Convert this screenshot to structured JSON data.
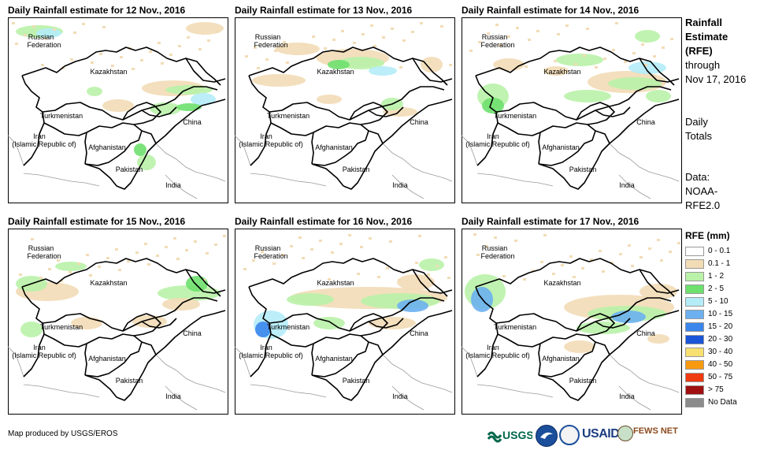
{
  "panels": [
    {
      "title": "Daily Rainfall estimate for 12 Nov., 2016",
      "variant": 0
    },
    {
      "title": "Daily Rainfall estimate for 13 Nov., 2016",
      "variant": 1
    },
    {
      "title": "Daily Rainfall estimate for 14 Nov., 2016",
      "variant": 2
    },
    {
      "title": "Daily Rainfall estimate for 15 Nov., 2016",
      "variant": 3
    },
    {
      "title": "Daily Rainfall estimate for 16 Nov., 2016",
      "variant": 4
    },
    {
      "title": "Daily Rainfall estimate for 17 Nov., 2016",
      "variant": 5
    }
  ],
  "map_labels": {
    "russia_1": "Russian",
    "russia_2": "Federation",
    "kazakhstan": "Kazakhstan",
    "turkmenistan": "Turkmenistan",
    "iran_1": "Iran",
    "iran_2": "(Islamic Republic of)",
    "afghanistan": "Afghanistan",
    "pakistan": "Pakistan",
    "china": "China",
    "india": "India"
  },
  "side": {
    "title_lines": [
      "Rainfall",
      "Estimate",
      "(RFE)"
    ],
    "through_lines": [
      "through",
      "Nov 17, 2016"
    ],
    "daily_lines": [
      "Daily",
      "Totals"
    ],
    "data_lines": [
      "Data:",
      "NOAA-",
      "RFE2.0"
    ]
  },
  "legend": {
    "title": "RFE (mm)",
    "items": [
      {
        "label": "0 - 0.1",
        "color": "#ffffff"
      },
      {
        "label": "0.1 - 1",
        "color": "#f2dcb6"
      },
      {
        "label": "1 - 2",
        "color": "#b9f2a8"
      },
      {
        "label": "2 - 5",
        "color": "#6ee06e"
      },
      {
        "label": "5 - 10",
        "color": "#b4ecf8"
      },
      {
        "label": "10 - 15",
        "color": "#6cb0f0"
      },
      {
        "label": "15 - 20",
        "color": "#3a86ec"
      },
      {
        "label": "20 - 30",
        "color": "#1a55d8"
      },
      {
        "label": "30 - 40",
        "color": "#f8e070"
      },
      {
        "label": "40 - 50",
        "color": "#f89a10"
      },
      {
        "label": "50 - 75",
        "color": "#f03a10"
      },
      {
        "label": "> 75",
        "color": "#a01010"
      },
      {
        "label": "No Data",
        "color": "#8c8c8c"
      }
    ]
  },
  "credit": "Map produced by USGS/EROS",
  "logos": {
    "usgs": "USGS",
    "usaid": "USAID",
    "fews": "FEWS NET"
  }
}
